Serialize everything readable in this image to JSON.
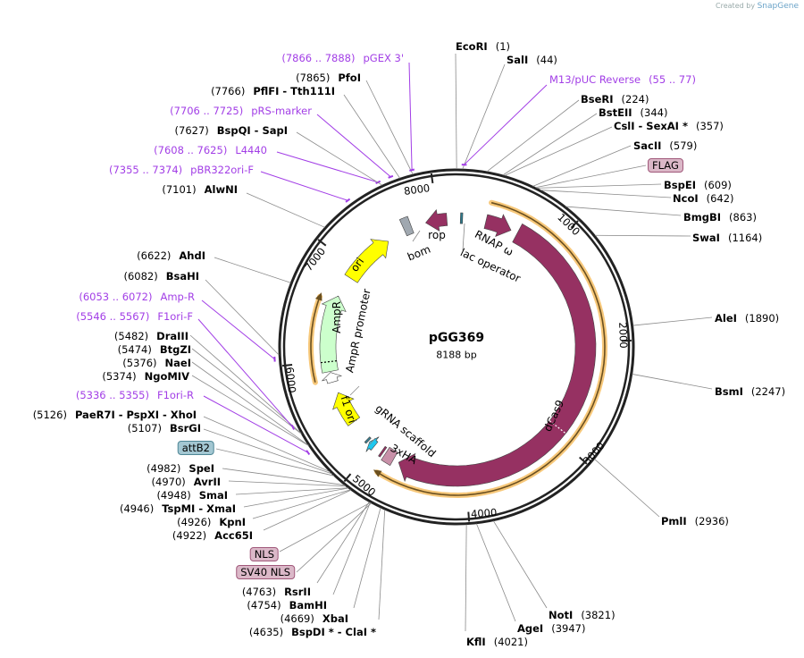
{
  "credit": {
    "prefix": "Created by",
    "brand": "SnapGene"
  },
  "plasmid": {
    "name": "pGG369",
    "length": "8188 bp",
    "total_bp": 8188
  },
  "colors": {
    "cas9": "#963162",
    "ori": "#ffff00",
    "ampr": "#ccffcc",
    "orange": "#f7c87a",
    "primer": "#a23ee6",
    "gray": "#a0a8b0"
  },
  "ticks": [
    "1000",
    "2000",
    "3000",
    "4000",
    "5000",
    "6000",
    "7000",
    "8000"
  ],
  "features": [
    {
      "name": "dCas9",
      "start": 640,
      "end": 4700,
      "dir": "cw",
      "color": "#963162"
    },
    {
      "name": "RNAP ω",
      "start": 300,
      "end": 570,
      "dir": "cw",
      "color": "#963162"
    },
    {
      "name": "3xHA",
      "start": 4760,
      "end": 4860,
      "dir": "none",
      "color": "#c890a8"
    },
    {
      "name": "NLS",
      "start": 4885,
      "end": 4905,
      "dir": "none",
      "color": "#963162"
    },
    {
      "name": "gRNA scaffold",
      "start": 4995,
      "end": 5060,
      "dir": "cw",
      "color": "#1ec8f0"
    },
    {
      "name": "attB2",
      "start": 5075,
      "end": 5095,
      "dir": "none",
      "color": "#3a7f92"
    },
    {
      "name": "f1 ori",
      "start": 5320,
      "end": 5660,
      "dir": "cw",
      "color": "#ffff00"
    },
    {
      "name": "AmpR promoter",
      "start": 5780,
      "end": 5880,
      "dir": "cw",
      "color": "#ffffff"
    },
    {
      "name": "AmpR",
      "start": 5890,
      "end": 6670,
      "dir": "cw",
      "color": "#ccffcc"
    },
    {
      "name": "ori",
      "start": 6890,
      "end": 7440,
      "dir": "cw",
      "color": "#ffff00"
    },
    {
      "name": "bom",
      "start": 7640,
      "end": 7720,
      "dir": "none",
      "color": "#a0a8b0"
    },
    {
      "name": "rop",
      "start": 7870,
      "end": 8090,
      "dir": "ccw",
      "color": "#963162"
    },
    {
      "name": "lac operator",
      "start": 40,
      "end": 62,
      "dir": "none",
      "color": "#2c7a8c"
    }
  ],
  "orfs": [
    {
      "start": 310,
      "end": 4870,
      "dir": "cw"
    },
    {
      "start": 5820,
      "end": 6640,
      "dir": "cw"
    }
  ],
  "annotations": [
    {
      "type": "site",
      "name": "EcoRI",
      "pos": "(1)"
    },
    {
      "type": "site",
      "name": "SalI",
      "pos": "(44)"
    },
    {
      "type": "primer",
      "name": "M13/pUC Reverse",
      "pos": "(55 .. 77)"
    },
    {
      "type": "site",
      "name": "BseRI",
      "pos": "(224)"
    },
    {
      "type": "site",
      "name": "BstEII",
      "pos": "(344)"
    },
    {
      "type": "site",
      "name": "CslI  - SexAI *",
      "pos": "(357)"
    },
    {
      "type": "site",
      "name": "SacII",
      "pos": "(579)"
    },
    {
      "type": "box",
      "name": "FLAG",
      "pos": ""
    },
    {
      "type": "site",
      "name": "BspEI",
      "pos": "(609)"
    },
    {
      "type": "site",
      "name": "NcoI",
      "pos": "(642)"
    },
    {
      "type": "site",
      "name": "BmgBI",
      "pos": "(863)"
    },
    {
      "type": "site",
      "name": "SwaI",
      "pos": "(1164)"
    },
    {
      "type": "site",
      "name": "AleI",
      "pos": "(1890)"
    },
    {
      "type": "site",
      "name": "BsmI",
      "pos": "(2247)"
    },
    {
      "type": "site",
      "name": "PmlI",
      "pos": "(2936)"
    },
    {
      "type": "site",
      "name": "NotI",
      "pos": "(3821)"
    },
    {
      "type": "site",
      "name": "AgeI",
      "pos": "(3947)"
    },
    {
      "type": "site",
      "name": "KflI",
      "pos": "(4021)"
    },
    {
      "type": "site",
      "name": "BspDI *  - ClaI *",
      "pos": "(4635)"
    },
    {
      "type": "site",
      "name": "XbaI",
      "pos": "(4669)"
    },
    {
      "type": "site",
      "name": "BamHI",
      "pos": "(4754)"
    },
    {
      "type": "site",
      "name": "RsrII",
      "pos": "(4763)"
    },
    {
      "type": "box",
      "name": "SV40 NLS",
      "pos": ""
    },
    {
      "type": "box",
      "name": "NLS",
      "pos": ""
    },
    {
      "type": "site",
      "name": "Acc65I",
      "pos": "(4922)"
    },
    {
      "type": "site",
      "name": "KpnI",
      "pos": "(4926)"
    },
    {
      "type": "site",
      "name": "TspMI  - XmaI",
      "pos": "(4946)"
    },
    {
      "type": "site",
      "name": "SmaI",
      "pos": "(4948)"
    },
    {
      "type": "site",
      "name": "AvrII",
      "pos": "(4970)"
    },
    {
      "type": "site",
      "name": "SpeI",
      "pos": "(4982)"
    },
    {
      "type": "boxblue",
      "name": "attB2",
      "pos": ""
    },
    {
      "type": "site",
      "name": "BsrGI",
      "pos": "(5107)"
    },
    {
      "type": "site",
      "name": "PaeR7I  - PspXI  - XhoI",
      "pos": "(5126)"
    },
    {
      "type": "primer",
      "name": "F1ori-R",
      "pos": "(5336 .. 5355)"
    },
    {
      "type": "site",
      "name": "NgoMIV",
      "pos": "(5374)"
    },
    {
      "type": "site",
      "name": "NaeI",
      "pos": "(5376)"
    },
    {
      "type": "site",
      "name": "BtgZI",
      "pos": "(5474)"
    },
    {
      "type": "site",
      "name": "DraIII",
      "pos": "(5482)"
    },
    {
      "type": "primer",
      "name": "F1ori-F",
      "pos": "(5546 .. 5567)"
    },
    {
      "type": "primer",
      "name": "Amp-R",
      "pos": "(6053 .. 6072)"
    },
    {
      "type": "site",
      "name": "BsaHI",
      "pos": "(6082)"
    },
    {
      "type": "site",
      "name": "AhdI",
      "pos": "(6622)"
    },
    {
      "type": "site",
      "name": "AlwNI",
      "pos": "(7101)"
    },
    {
      "type": "primer",
      "name": "pBR322ori-F",
      "pos": "(7355 .. 7374)"
    },
    {
      "type": "primer",
      "name": "L4440",
      "pos": "(7608 .. 7625)"
    },
    {
      "type": "site",
      "name": "BspQI  - SapI",
      "pos": "(7627)"
    },
    {
      "type": "primer",
      "name": "pRS-marker",
      "pos": "(7706 .. 7725)"
    },
    {
      "type": "site",
      "name": "PflFI  - Tth111I",
      "pos": "(7766)"
    },
    {
      "type": "site",
      "name": "PfoI",
      "pos": "(7865)"
    },
    {
      "type": "primer",
      "name": "pGEX 3'",
      "pos": "(7866 .. 7888)"
    }
  ]
}
